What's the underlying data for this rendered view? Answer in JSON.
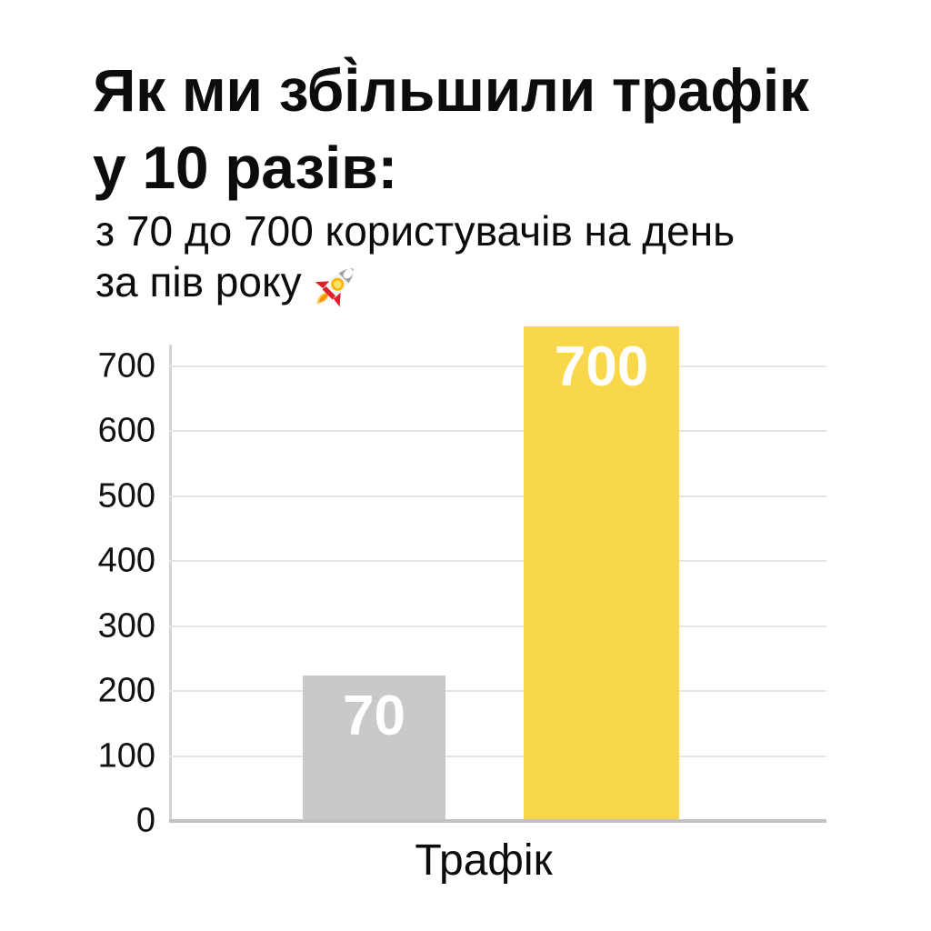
{
  "header": {
    "title_lines": [
      "Як ми збі̀льшили трафік",
      "у 10 разів:"
    ],
    "subtitle_lines": [
      "з 70 до 700 користувачів на день",
      "за пів року"
    ]
  },
  "chart_data": {
    "type": "bar",
    "title": "",
    "xlabel": "Трафік",
    "categories": [
      "Трафік"
    ],
    "series": [
      {
        "label": "70",
        "value": 70,
        "color": "#c9c9c9",
        "label_color": "#ffffff"
      },
      {
        "label": "700",
        "value": 700,
        "color": "#f8d74a",
        "label_color": "#ffffff"
      }
    ],
    "y_ticks": [
      0,
      100,
      200,
      300,
      400,
      500,
      600,
      700
    ],
    "ylim": [
      0,
      733
    ],
    "grid": true,
    "drawn_values": [
      224,
      761
    ]
  }
}
